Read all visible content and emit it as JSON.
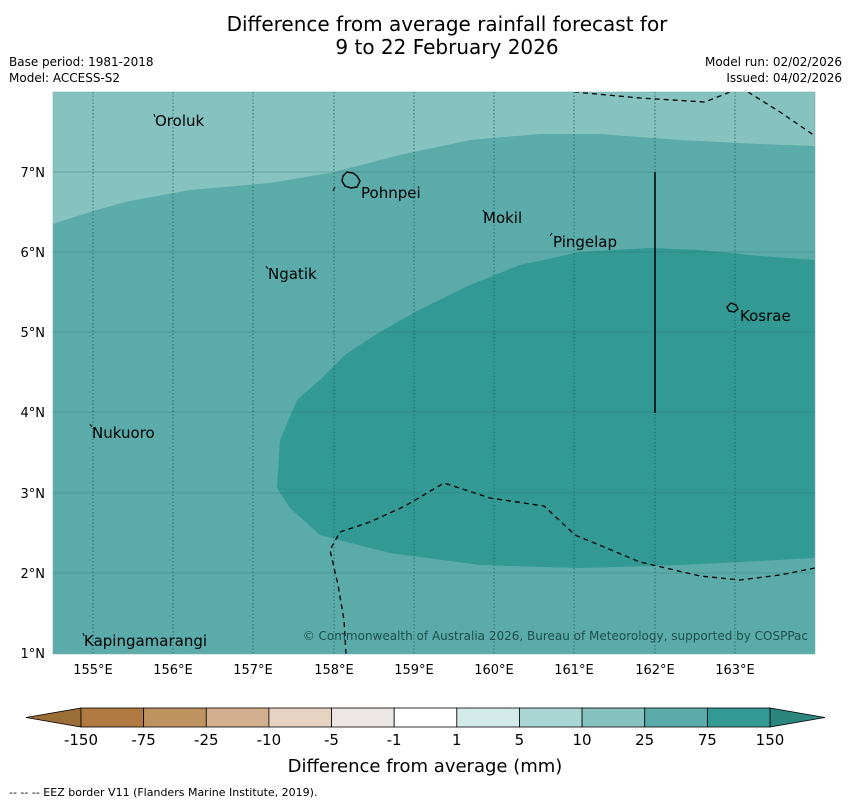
{
  "title": {
    "line1": "Difference from average rainfall forecast for",
    "line2": "9 to 22 February 2026"
  },
  "meta_left": {
    "base_period": "Base period: 1981-2018",
    "model": "Model: ACCESS-S2"
  },
  "meta_right": {
    "model_run": "Model run: 02/02/2026",
    "issued": "Issued: 04/02/2026"
  },
  "map": {
    "lon_ticks": [
      "155°E",
      "156°E",
      "157°E",
      "158°E",
      "159°E",
      "160°E",
      "161°E",
      "162°E",
      "163°E"
    ],
    "lat_ticks": [
      "7°N",
      "6°N",
      "5°N",
      "4°N",
      "3°N",
      "2°N",
      "1°N"
    ],
    "places": {
      "oroluk": "Oroluk",
      "pohnpei": "Pohnpei",
      "mokil": "Mokil",
      "pingelap": "Pingelap",
      "ngatik": "Ngatik",
      "kosrae": "Kosrae",
      "nukuoro": "Nukuoro",
      "kapingamarangi": "Kapingamarangi"
    },
    "copyright": "© Commonwealth of Australia 2026, Bureau of Meteorology, supported by COSPPac",
    "colors": {
      "band_10_25": "#85c2c0",
      "band_25_75": "#5aabaa",
      "band_75_150": "#339995",
      "land_outline": "#000000"
    }
  },
  "colorbar": {
    "title": "Difference from average (mm)",
    "labels": [
      "-150",
      "-75",
      "-25",
      "-10",
      "-5",
      "-1",
      "1",
      "5",
      "10",
      "25",
      "75",
      "150"
    ],
    "colors": [
      "#b07a40",
      "#be935f",
      "#d2b08f",
      "#e7d3c2",
      "#ece7e4",
      "#ffffff",
      "#d4eae8",
      "#a9d5d3",
      "#85c2c0",
      "#5aabaa",
      "#339995"
    ],
    "extend_low_color": "#9c6e37",
    "extend_high_color": "#2c8680"
  },
  "footer": {
    "eez_note": "--  --  -- EEZ border V11 (Flanders Marine Institute, 2019)."
  }
}
